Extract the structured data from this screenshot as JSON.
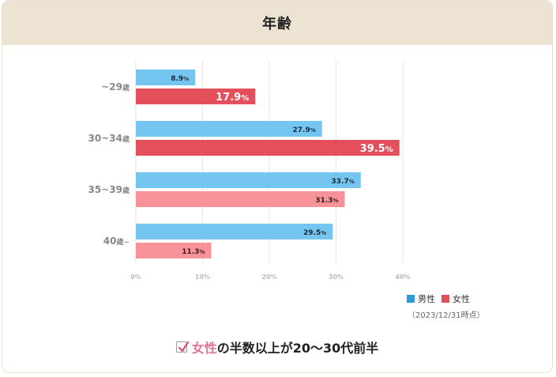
{
  "header": {
    "title": "年齢"
  },
  "chart_data": {
    "type": "bar",
    "orientation": "horizontal",
    "categories": [
      {
        "label": "~29",
        "suffix": "歳",
        "prefix": ""
      },
      {
        "label": "30~34",
        "suffix": "歳",
        "prefix": ""
      },
      {
        "label": "35~39",
        "suffix": "歳",
        "prefix": ""
      },
      {
        "label": "40",
        "suffix": "歳~",
        "prefix": ""
      }
    ],
    "series": [
      {
        "name": "男性",
        "values": [
          8.9,
          27.9,
          33.7,
          29.5
        ],
        "color": "#74c6f0"
      },
      {
        "name": "女性",
        "values": [
          17.9,
          39.5,
          31.3,
          11.3
        ],
        "color": "#e34f5b"
      }
    ],
    "female_colors": [
      "#e34f5b",
      "#e34f5b",
      "#f79299",
      "#f79299"
    ],
    "highlight_female": [
      true,
      true,
      false,
      false
    ],
    "value_labels": {
      "male": [
        "8.9",
        "27.9",
        "33.7",
        "29.5"
      ],
      "female": [
        "17.9",
        "39.5",
        "31.3",
        "11.3"
      ],
      "unit": "%"
    },
    "xticks": [
      "0%",
      "10%",
      "20%",
      "30%",
      "40%"
    ],
    "xlim": [
      0,
      40
    ],
    "grid": true,
    "legend_position": "bottom-right"
  },
  "legend": {
    "items": [
      {
        "label": "男性",
        "color": "#2f9ad8"
      },
      {
        "label": "女性",
        "color": "#e34f5b"
      }
    ]
  },
  "footnote": "（2023/12/31時点）",
  "summary": {
    "highlight": "女性",
    "text": "の半数以上が20～30代前半"
  }
}
